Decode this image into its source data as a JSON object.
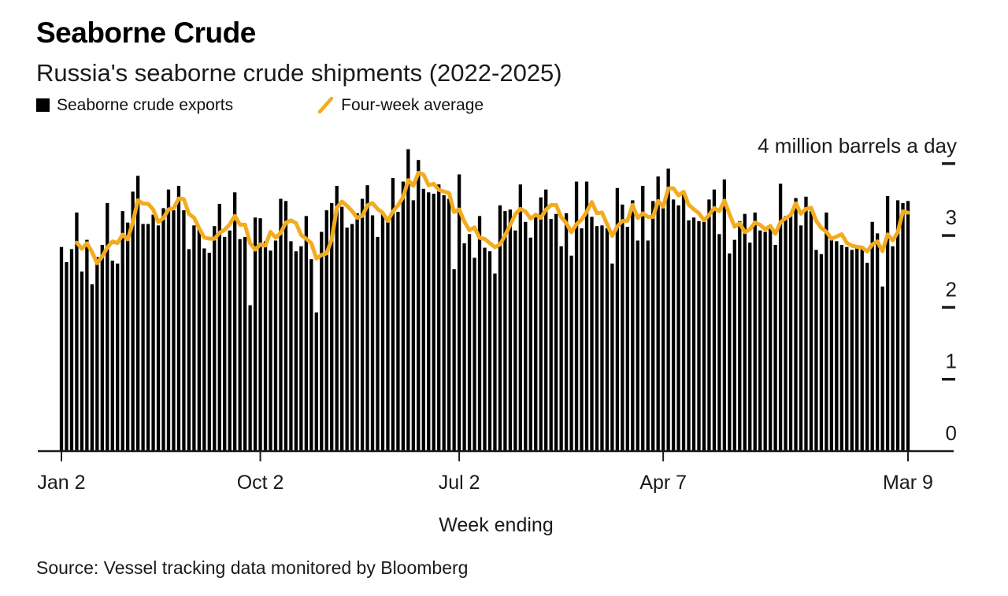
{
  "page": {
    "title": "Seaborne Crude",
    "subtitle": "Russia's seaborne crude shipments (2022-2025)",
    "source": "Source: Vessel tracking data monitored by Bloomberg"
  },
  "legend": {
    "exports_label": "Seaborne crude exports",
    "average_label": "Four-week average"
  },
  "colors": {
    "bar": "#000000",
    "line": "#F3AC1F",
    "axis": "#1a1a1a",
    "text": "#1a1a1a",
    "background": "#ffffff"
  },
  "chart_data": {
    "type": "bar",
    "title": "Seaborne Crude",
    "subtitle": "Russia's seaborne crude shipments (2022-2025)",
    "xlabel": "Week ending",
    "ylabel": "million barrels a day",
    "ylim": [
      0,
      4
    ],
    "grid": false,
    "legend_position": "top",
    "n_weeks": 167,
    "x_range_labels": [
      "Jan 2 (2022)",
      "Mar 9 (2025)"
    ],
    "xticks": [
      {
        "week_index": 0,
        "label": "Jan 2"
      },
      {
        "week_index": 39,
        "label": "Oct 2"
      },
      {
        "week_index": 78,
        "label": "Jul 2"
      },
      {
        "week_index": 118,
        "label": "Apr 7"
      },
      {
        "week_index": 166,
        "label": "Mar 9"
      }
    ],
    "yticks": [
      {
        "value": 4,
        "label": "4 million barrels a day"
      },
      {
        "value": 3,
        "label": "3"
      },
      {
        "value": 2,
        "label": "2"
      },
      {
        "value": 1,
        "label": "1"
      },
      {
        "value": 0,
        "label": "0"
      }
    ],
    "series": [
      {
        "name": "Seaborne crude exports",
        "type": "bar",
        "color": "#000000",
        "values": [
          2.84,
          2.63,
          2.81,
          3.32,
          2.5,
          2.94,
          2.32,
          2.7,
          2.87,
          3.45,
          2.65,
          2.61,
          3.34,
          3.18,
          3.61,
          3.83,
          3.16,
          3.16,
          3.29,
          3.14,
          3.38,
          3.64,
          3.35,
          3.69,
          3.35,
          2.81,
          3.14,
          3.11,
          2.82,
          2.76,
          3.13,
          3.44,
          2.98,
          3.07,
          3.6,
          2.95,
          2.98,
          2.03,
          3.25,
          3.24,
          2.92,
          2.79,
          2.93,
          3.51,
          3.48,
          2.92,
          2.78,
          2.85,
          3.27,
          2.67,
          1.93,
          3.05,
          3.35,
          3.45,
          3.69,
          3.4,
          3.11,
          3.16,
          3.31,
          3.51,
          3.7,
          3.28,
          2.98,
          3.3,
          3.25,
          3.8,
          3.33,
          3.75,
          4.2,
          3.49,
          4.05,
          3.65,
          3.6,
          3.58,
          3.71,
          3.56,
          3.51,
          2.53,
          3.85,
          2.89,
          3.02,
          2.69,
          3.27,
          2.83,
          2.78,
          2.47,
          3.42,
          3.34,
          3.36,
          3.07,
          3.71,
          3.19,
          2.97,
          3.29,
          3.53,
          3.64,
          3.23,
          3.3,
          2.85,
          3.31,
          2.72,
          3.75,
          3.1,
          3.75,
          3.26,
          3.13,
          3.14,
          3.1,
          2.61,
          3.66,
          3.43,
          3.12,
          3.49,
          2.93,
          3.69,
          2.93,
          3.48,
          3.82,
          3.38,
          3.93,
          3.5,
          3.42,
          3.58,
          3.21,
          3.25,
          3.2,
          3.19,
          3.5,
          3.64,
          3.02,
          3.78,
          2.75,
          2.94,
          3.2,
          3.3,
          2.9,
          3.32,
          3.07,
          3.05,
          3.1,
          2.87,
          3.72,
          3.27,
          3.28,
          3.52,
          3.14,
          3.54,
          3.34,
          2.8,
          2.74,
          3.32,
          2.96,
          2.92,
          2.87,
          2.84,
          2.8,
          2.86,
          2.83,
          2.62,
          3.19,
          3.03,
          2.29,
          3.55,
          2.85,
          3.49,
          3.45,
          3.48
        ]
      },
      {
        "name": "Four-week average",
        "type": "line",
        "color": "#F3AC1F",
        "derived_from": "4-week rolling mean of Seaborne crude exports"
      }
    ]
  }
}
